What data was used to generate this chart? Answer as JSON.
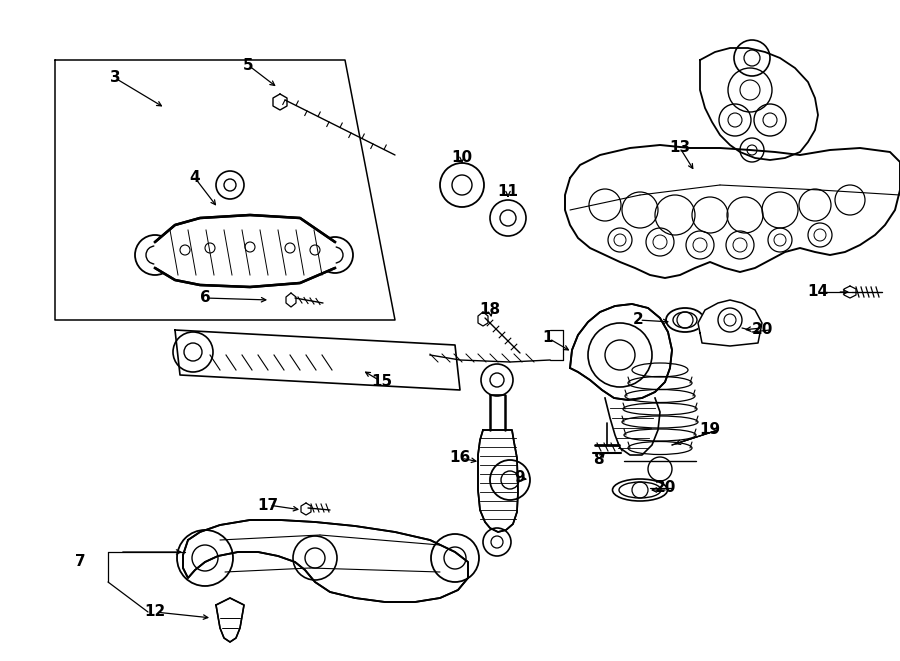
{
  "bg_color": "#ffffff",
  "lc": "#000000",
  "figsize": [
    9.0,
    6.61
  ],
  "dpi": 100,
  "iw": 900,
  "ih": 661
}
